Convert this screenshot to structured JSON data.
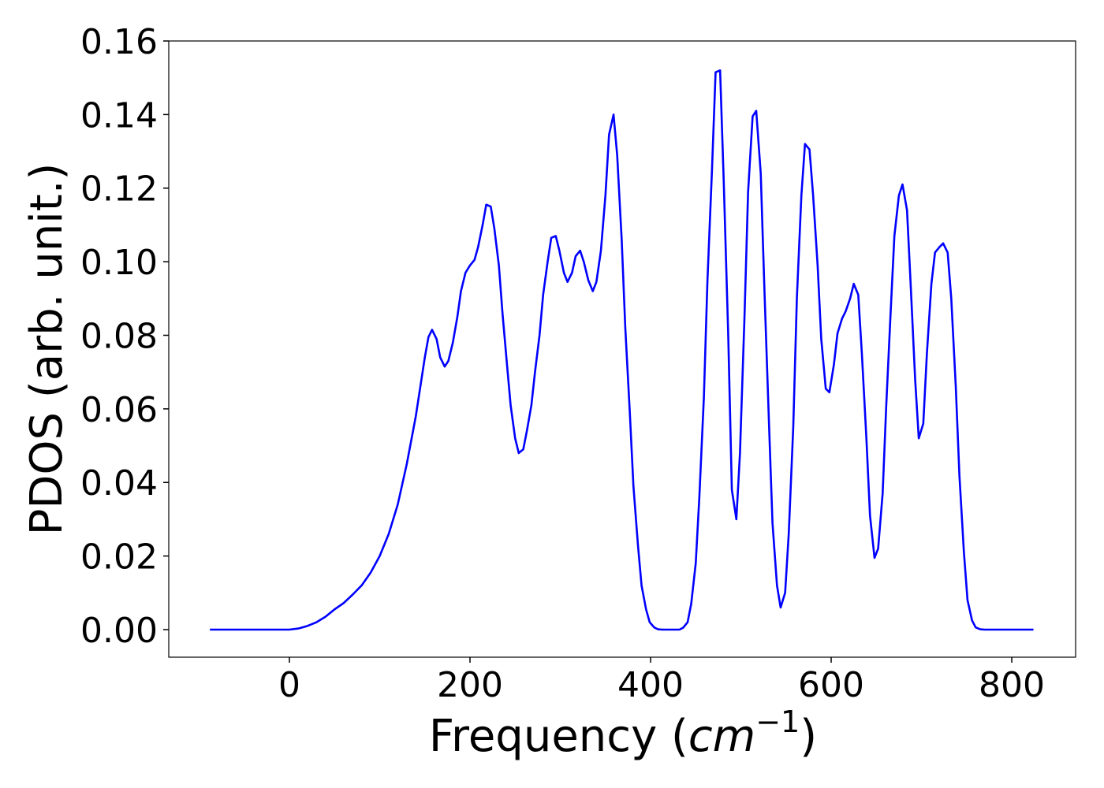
{
  "chart_data": {
    "type": "line",
    "xlabel": [
      "Frequency (",
      "cm",
      "−1",
      ")"
    ],
    "ylabel": "PDOS (arb. unit.)",
    "x": [
      -88,
      -40,
      0,
      10,
      20,
      30,
      40,
      50,
      60,
      70,
      80,
      90,
      100,
      110,
      120,
      130,
      140,
      145,
      150,
      154,
      158,
      163,
      167,
      172,
      176,
      181,
      186,
      190,
      195,
      200,
      205,
      209,
      214,
      218,
      223,
      227,
      232,
      236,
      241,
      245,
      250,
      254,
      259,
      263,
      268,
      272,
      277,
      281,
      286,
      290,
      295,
      299,
      304,
      308,
      313,
      317,
      322,
      326,
      331,
      336,
      340,
      345,
      350,
      354,
      359,
      363,
      368,
      372,
      377,
      381,
      386,
      390,
      395,
      399,
      404,
      408,
      413,
      432,
      436,
      441,
      445,
      450,
      454,
      459,
      463,
      468,
      472,
      477,
      481,
      486,
      490,
      495,
      499,
      504,
      508,
      513,
      517,
      522,
      526,
      531,
      535,
      540,
      544,
      549,
      553,
      558,
      562,
      567,
      571,
      576,
      580,
      585,
      589,
      594,
      598,
      603,
      607,
      612,
      616,
      621,
      625,
      630,
      634,
      639,
      643,
      648,
      652,
      657,
      661,
      666,
      670,
      675,
      679,
      684,
      688,
      693,
      697,
      702,
      706,
      711,
      715,
      720,
      724,
      729,
      733,
      738,
      742,
      747,
      751,
      756,
      760,
      765,
      770,
      824
    ],
    "series": [
      {
        "color": "#0000ff",
        "values": [
          0,
          0,
          0,
          0.0003,
          0.001,
          0.002,
          0.0035,
          0.0055,
          0.0072,
          0.0095,
          0.012,
          0.0155,
          0.02,
          0.026,
          0.034,
          0.045,
          0.058,
          0.066,
          0.074,
          0.0795,
          0.0815,
          0.079,
          0.074,
          0.0715,
          0.073,
          0.078,
          0.085,
          0.092,
          0.097,
          0.099,
          0.1005,
          0.104,
          0.11,
          0.1155,
          0.115,
          0.109,
          0.099,
          0.086,
          0.072,
          0.061,
          0.052,
          0.048,
          0.049,
          0.054,
          0.061,
          0.07,
          0.08,
          0.091,
          0.1,
          0.1065,
          0.107,
          0.103,
          0.097,
          0.0945,
          0.097,
          0.1015,
          0.103,
          0.1,
          0.095,
          0.092,
          0.0945,
          0.103,
          0.118,
          0.1345,
          0.14,
          0.129,
          0.106,
          0.082,
          0.059,
          0.039,
          0.023,
          0.012,
          0.0055,
          0.002,
          0.0006,
          0.0001,
          0,
          0,
          0.0005,
          0.002,
          0.007,
          0.018,
          0.036,
          0.063,
          0.095,
          0.125,
          0.1515,
          0.152,
          0.122,
          0.08,
          0.038,
          0.03,
          0.048,
          0.085,
          0.119,
          0.1395,
          0.141,
          0.124,
          0.093,
          0.057,
          0.029,
          0.012,
          0.006,
          0.01,
          0.026,
          0.055,
          0.09,
          0.118,
          0.132,
          0.1305,
          0.118,
          0.099,
          0.079,
          0.0655,
          0.0645,
          0.072,
          0.0805,
          0.0845,
          0.0865,
          0.09,
          0.094,
          0.091,
          0.075,
          0.052,
          0.031,
          0.0195,
          0.022,
          0.037,
          0.061,
          0.087,
          0.107,
          0.118,
          0.121,
          0.114,
          0.094,
          0.068,
          0.052,
          0.056,
          0.075,
          0.094,
          0.1025,
          0.104,
          0.105,
          0.1025,
          0.09,
          0.066,
          0.042,
          0.021,
          0.008,
          0.0025,
          0.0006,
          0.0001,
          0,
          0
        ]
      }
    ],
    "xlim": [
      -133.6,
      870.7
    ],
    "ylim": [
      -0.0075,
      0.16
    ],
    "xticks": [
      0,
      200,
      400,
      600,
      800
    ],
    "yticks": [
      {
        "value": 0,
        "label": "0.00"
      },
      {
        "value": 0.02,
        "label": "0.02"
      },
      {
        "value": 0.04,
        "label": "0.04"
      },
      {
        "value": 0.06,
        "label": "0.06"
      },
      {
        "value": 0.08,
        "label": "0.08"
      },
      {
        "value": 0.1,
        "label": "0.10"
      },
      {
        "value": 0.12,
        "label": "0.12"
      },
      {
        "value": 0.14,
        "label": "0.14"
      },
      {
        "value": 0.16,
        "label": "0.16"
      }
    ],
    "grid": false
  }
}
